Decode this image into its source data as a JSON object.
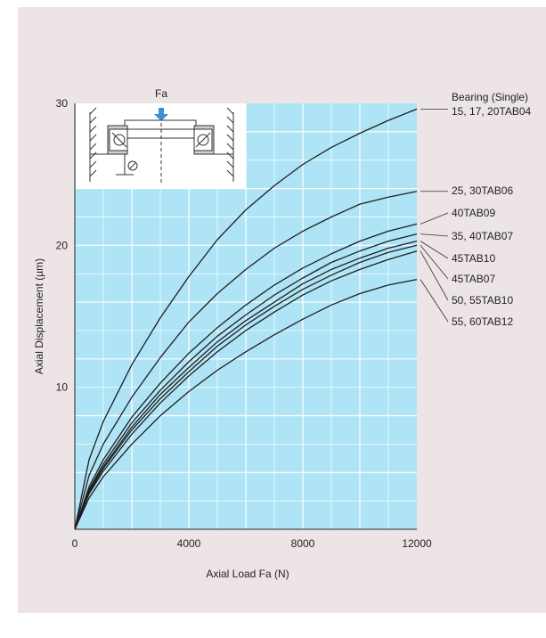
{
  "colors": {
    "panel_bg": "#ede5e5",
    "plot_bg": "#aee4f6",
    "grid": "#ffffff",
    "curve": "#1f1f1f",
    "arrow": "#3d8fd6"
  },
  "diagram": {
    "force_label": "Fa"
  },
  "chart_data": {
    "type": "line",
    "title": "",
    "xlabel": "Axial Load Fa (N)",
    "ylabel": "Axial Displacement (µm)",
    "xlim": [
      0,
      12000
    ],
    "ylim": [
      0,
      30
    ],
    "x_ticks": [
      0,
      4000,
      8000,
      12000
    ],
    "x_tick_labels": [
      "0",
      "4000",
      "8000",
      "12000"
    ],
    "y_ticks": [
      10,
      20,
      30
    ],
    "y_tick_labels": [
      "10",
      "20",
      "30"
    ],
    "grid": true,
    "x": [
      0,
      500,
      1000,
      2000,
      3000,
      4000,
      5000,
      6000,
      7000,
      8000,
      9000,
      10000,
      11000,
      12000
    ],
    "series": [
      {
        "name": "15, 17, 20TAB04",
        "values": [
          0,
          4.9,
          7.6,
          11.6,
          14.9,
          17.8,
          20.4,
          22.5,
          24.2,
          25.7,
          26.9,
          27.9,
          28.8,
          29.6
        ]
      },
      {
        "name": "25, 30TAB06",
        "values": [
          0,
          3.8,
          6.0,
          9.3,
          12.1,
          14.6,
          16.6,
          18.3,
          19.8,
          21.0,
          22.0,
          22.9,
          23.4,
          23.8
        ]
      },
      {
        "name": "40TAB09",
        "values": [
          0,
          3.0,
          4.9,
          7.9,
          10.3,
          12.4,
          14.2,
          15.8,
          17.2,
          18.4,
          19.4,
          20.3,
          21.0,
          21.5
        ]
      },
      {
        "name": "35, 40TAB07",
        "values": [
          0,
          2.8,
          4.6,
          7.5,
          9.8,
          11.8,
          13.6,
          15.1,
          16.5,
          17.7,
          18.8,
          19.6,
          20.3,
          20.8
        ]
      },
      {
        "name": "45TAB10",
        "values": [
          0,
          2.7,
          4.4,
          7.2,
          9.5,
          11.4,
          13.2,
          14.7,
          16.0,
          17.3,
          18.3,
          19.1,
          19.8,
          20.3
        ]
      },
      {
        "name": "45TAB07",
        "values": [
          0,
          2.6,
          4.3,
          7.0,
          9.2,
          11.1,
          12.9,
          14.4,
          15.7,
          16.9,
          17.9,
          18.8,
          19.5,
          20.0
        ]
      },
      {
        "name": "50, 55TAB10",
        "values": [
          0,
          2.5,
          4.1,
          6.7,
          8.9,
          10.8,
          12.5,
          14.0,
          15.3,
          16.5,
          17.5,
          18.3,
          19.0,
          19.6
        ]
      },
      {
        "name": "55, 60TAB12",
        "values": [
          0,
          2.2,
          3.7,
          6.0,
          8.0,
          9.7,
          11.2,
          12.5,
          13.7,
          14.8,
          15.8,
          16.6,
          17.2,
          17.6
        ]
      }
    ],
    "legend_header": "Bearing (Single)",
    "legend_placement": "right"
  }
}
